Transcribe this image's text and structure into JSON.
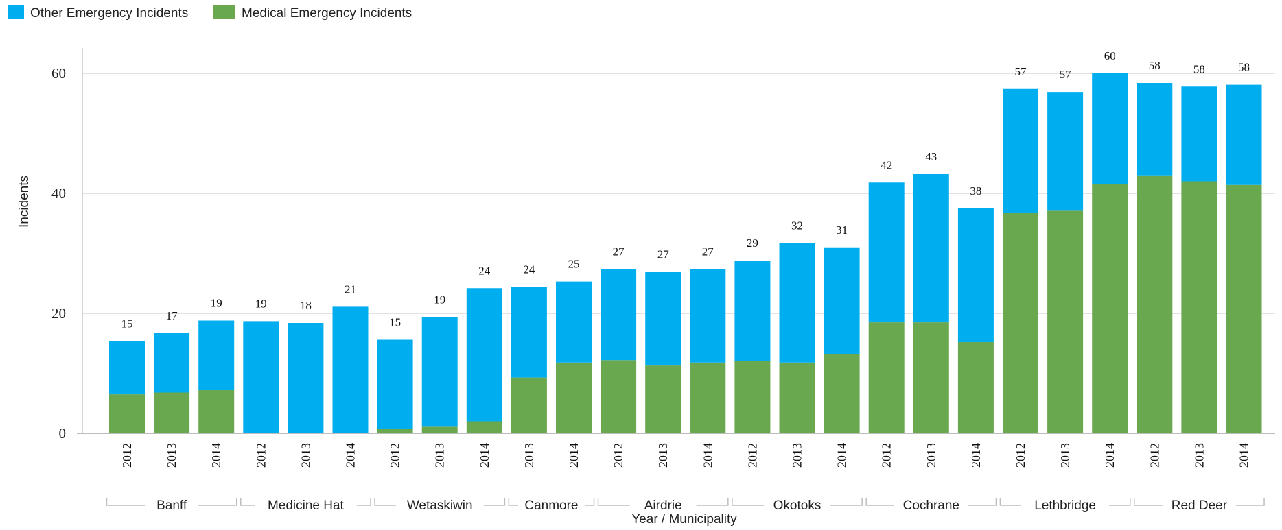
{
  "chart_data": {
    "type": "bar",
    "stacked": true,
    "legend": {
      "position": "top-left",
      "items": [
        {
          "name": "Other Emergency Incidents",
          "color": "#00aeef"
        },
        {
          "name": "Medical Emergency Incidents",
          "color": "#6aa84f"
        }
      ]
    },
    "xlabel": "Year / Municipality",
    "ylabel": "Incidents",
    "ylim": [
      0,
      65
    ],
    "yticks": [
      0,
      20,
      40,
      60
    ],
    "grid": true,
    "groups": [
      {
        "name": "Banff",
        "years": [
          "2012",
          "2013",
          "2014"
        ]
      },
      {
        "name": "Medicine Hat",
        "years": [
          "2012",
          "2013",
          "2014"
        ]
      },
      {
        "name": "Wetaskiwin",
        "years": [
          "2012",
          "2013",
          "2014"
        ]
      },
      {
        "name": "Canmore",
        "years": [
          "2013",
          "2014"
        ]
      },
      {
        "name": "Airdrie",
        "years": [
          "2012",
          "2013",
          "2014"
        ]
      },
      {
        "name": "Okotoks",
        "years": [
          "2012",
          "2013",
          "2014"
        ]
      },
      {
        "name": "Cochrane",
        "years": [
          "2012",
          "2013",
          "2014"
        ]
      },
      {
        "name": "Lethbridge",
        "years": [
          "2012",
          "2013",
          "2014"
        ]
      },
      {
        "name": "Red Deer",
        "years": [
          "2012",
          "2013",
          "2014"
        ]
      }
    ],
    "series": [
      {
        "name": "Medical Emergency Incidents",
        "color": "#6aa84f",
        "values": [
          6.5,
          6.8,
          7.2,
          0,
          0,
          0,
          0.7,
          1.1,
          2.0,
          9.3,
          11.8,
          12.2,
          11.3,
          11.8,
          12.0,
          11.8,
          13.2,
          18.5,
          18.5,
          15.2,
          36.8,
          37.1,
          41.5,
          43.0,
          42.0,
          41.4
        ]
      },
      {
        "name": "Other Emergency Incidents",
        "color": "#00aeef",
        "values": [
          8.9,
          9.9,
          11.6,
          18.7,
          18.4,
          21.1,
          14.9,
          18.3,
          22.2,
          15.1,
          13.5,
          15.2,
          15.6,
          15.6,
          16.8,
          19.9,
          17.8,
          23.3,
          24.7,
          22.3,
          20.6,
          19.8,
          18.5,
          15.4,
          15.8,
          16.7
        ]
      }
    ],
    "totals": [
      "15",
      "17",
      "19",
      "19",
      "18",
      "21",
      "15",
      "19",
      "24",
      "24",
      "25",
      "27",
      "27",
      "27",
      "29",
      "32",
      "31",
      "42",
      "43",
      "38",
      "57",
      "57",
      "60",
      "58",
      "58",
      "58"
    ]
  }
}
